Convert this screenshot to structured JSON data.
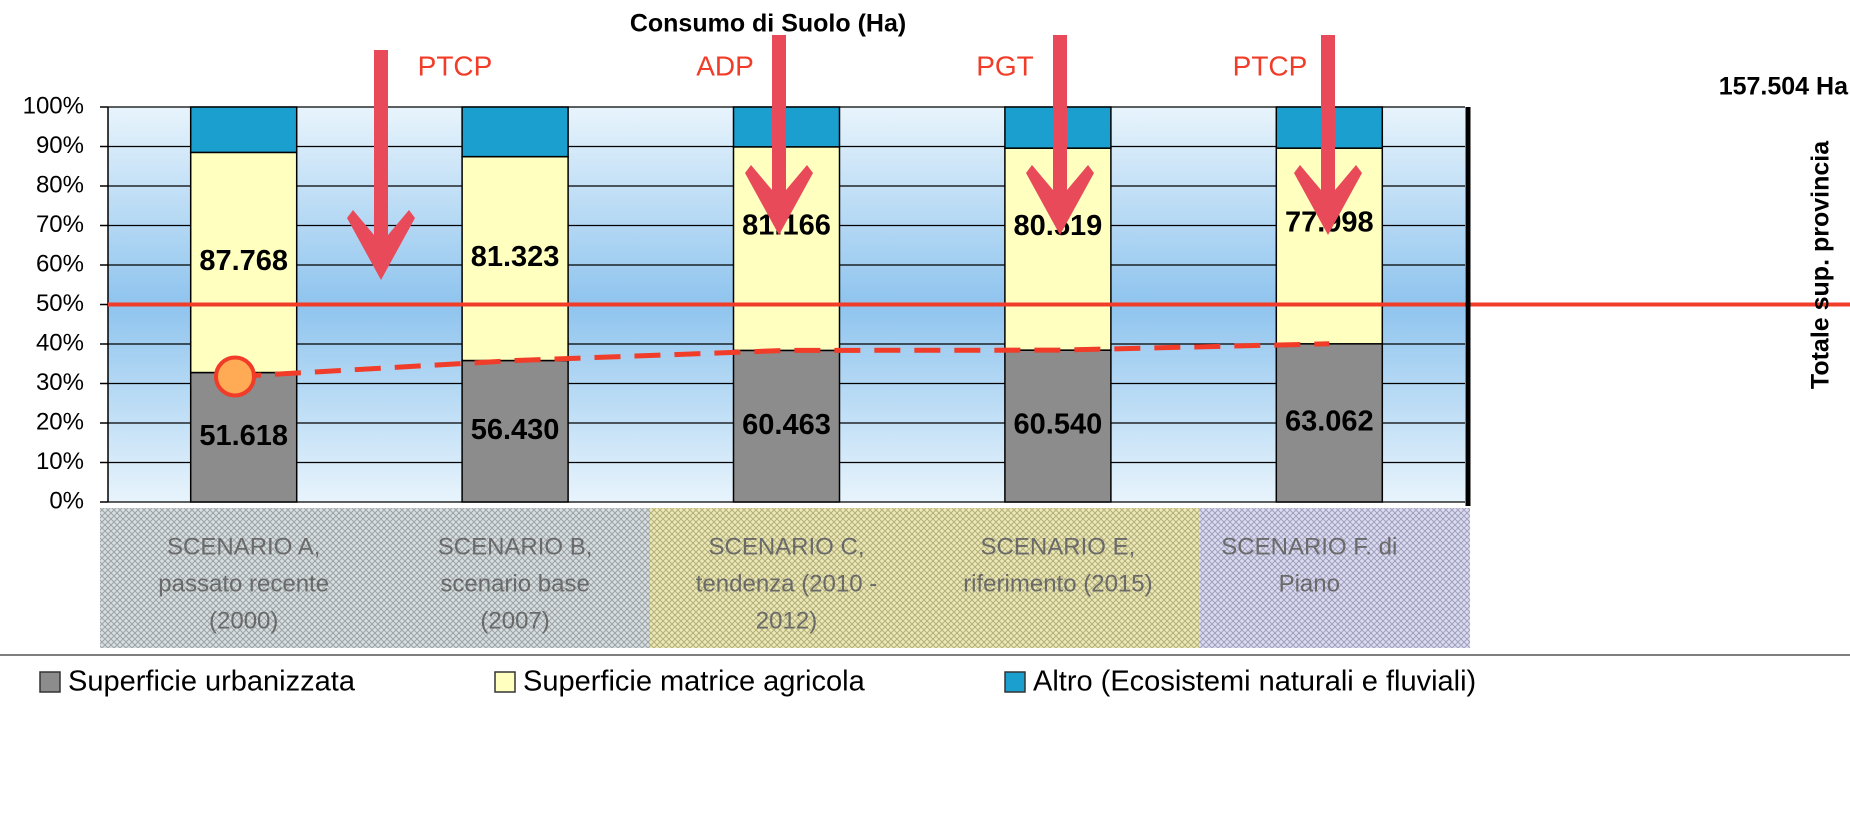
{
  "chart_data": {
    "type": "bar",
    "stacked": "percent",
    "title": "Consumo di Suolo (Ha)",
    "categories": [
      [
        "SCENARIO A,",
        "passato recente",
        "(2000)"
      ],
      [
        "SCENARIO B,",
        "scenario base",
        "(2007)"
      ],
      [
        "SCENARIO C,",
        "tendenza (2010 -",
        "2012)"
      ],
      [
        "SCENARIO E,",
        "riferimento (2015)"
      ],
      [
        "SCENARIO F. di",
        "Piano"
      ]
    ],
    "series": [
      {
        "name": "Superficie urbanizzata",
        "color": "#8c8c8c",
        "values": [
          51.618,
          56.43,
          60.463,
          60.54,
          63.062
        ],
        "value_labels": [
          "51.618",
          "56.430",
          "60.463",
          "60.540",
          "63.062"
        ]
      },
      {
        "name": "Superficie matrice agricola",
        "color": "#ffffc0",
        "values": [
          87.768,
          81.323,
          81.166,
          80.519,
          77.998
        ],
        "value_labels": [
          "87.768",
          "81.323",
          "81.166",
          "80.519",
          "77.998"
        ]
      },
      {
        "name": "Altro (Ecosistemi naturali e fluviali)",
        "color": "#1b9fcf",
        "values": [
          18.1,
          19.8,
          15.9,
          16.4,
          16.4
        ]
      }
    ],
    "ylim": [
      0,
      100
    ],
    "yticks": [
      {
        "value": 0,
        "label": "0%"
      },
      {
        "value": 10,
        "label": "10%"
      },
      {
        "value": 20,
        "label": "20%"
      },
      {
        "value": 30,
        "label": "30%"
      },
      {
        "value": 40,
        "label": "40%"
      },
      {
        "value": 50,
        "label": "50%"
      },
      {
        "value": 60,
        "label": "60%"
      },
      {
        "value": 70,
        "label": "70%"
      },
      {
        "value": 80,
        "label": "80%"
      },
      {
        "value": 90,
        "label": "90%"
      },
      {
        "value": 100,
        "label": "100%"
      }
    ],
    "grid": true,
    "reference_line": 50,
    "annotations": [
      "PTCP",
      "ADP",
      "PGT",
      "PTCP"
    ],
    "total_label": "157.504 Ha",
    "right_axis_label": "Totale sup. provincia"
  }
}
